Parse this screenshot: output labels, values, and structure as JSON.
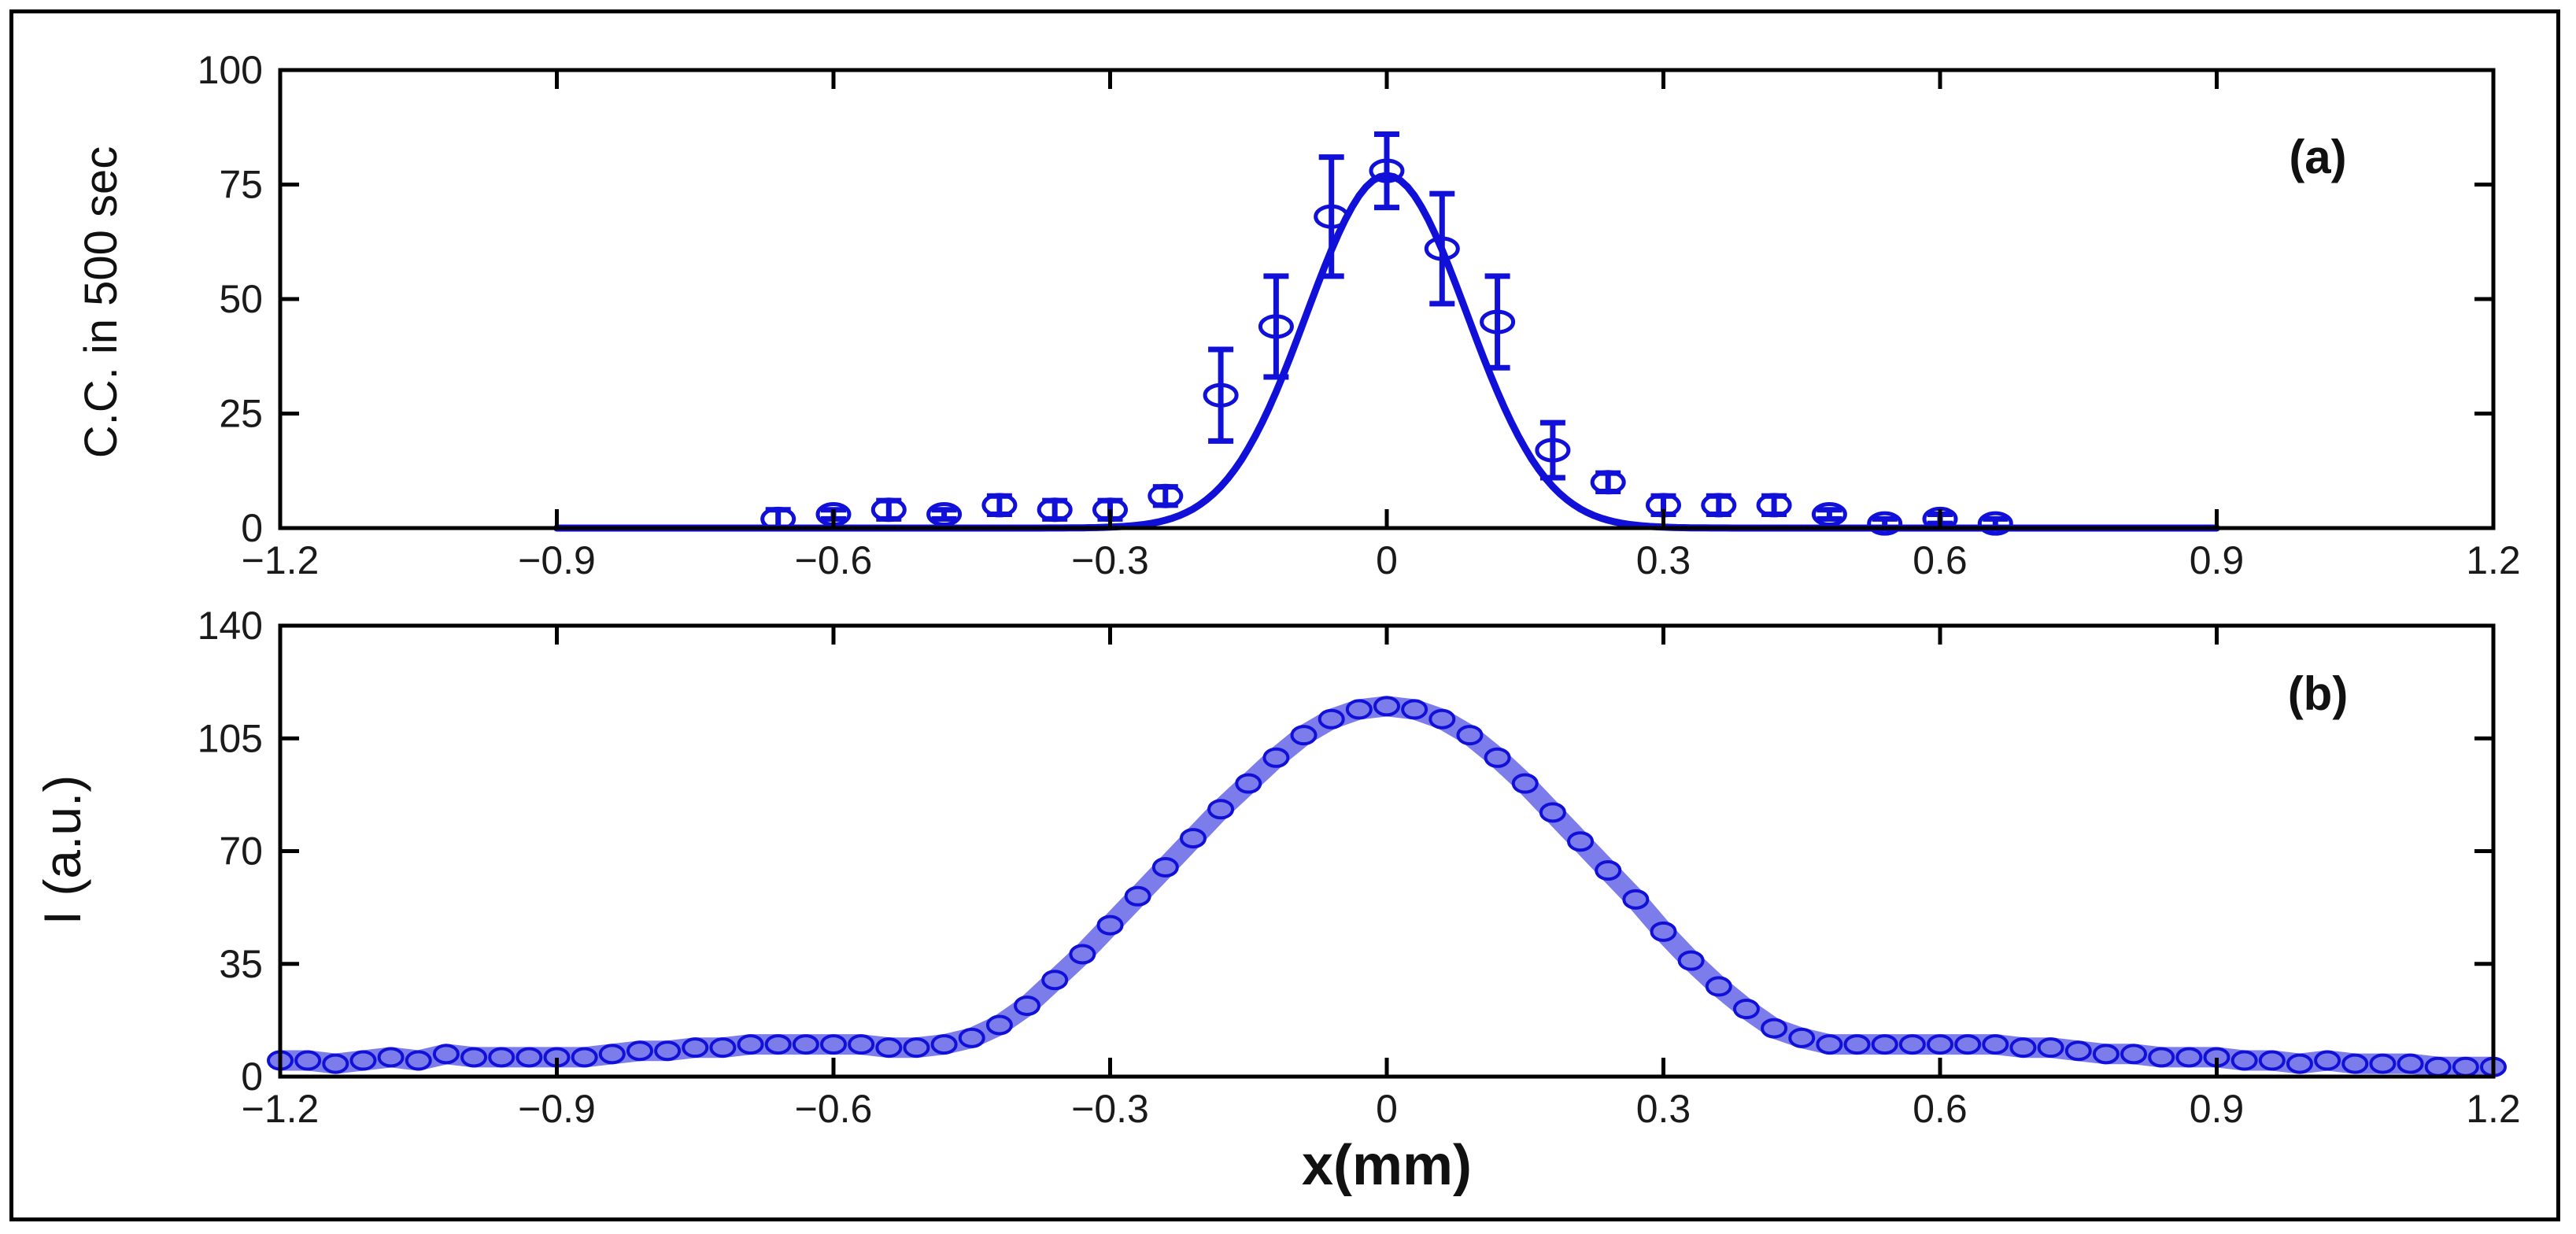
{
  "chart_data": [
    {
      "panel": "(a)",
      "type": "scatter",
      "ylabel": "C.C. in 500 sec",
      "xlim": [
        -1.2,
        1.2
      ],
      "ylim": [
        0,
        100
      ],
      "xticks": [
        "−1.2",
        "−0.9",
        "−0.6",
        "−0.3",
        "0",
        "0.3",
        "0.6",
        "0.9",
        "1.2"
      ],
      "xtick_values": [
        -1.2,
        -0.9,
        -0.6,
        -0.3,
        0,
        0.3,
        0.6,
        0.9,
        1.2
      ],
      "yticks": [
        "0",
        "25",
        "50",
        "75",
        "100"
      ],
      "ytick_values": [
        0,
        25,
        50,
        75,
        100
      ],
      "color": "#1010d8",
      "fit": {
        "form": "gaussian",
        "amplitude": 77,
        "center": 0,
        "sigma": 0.087,
        "x_range": [
          -0.9,
          0.9
        ]
      },
      "points": [
        {
          "x": -0.66,
          "y": 2,
          "err": 2
        },
        {
          "x": -0.6,
          "y": 3,
          "err": 1
        },
        {
          "x": -0.54,
          "y": 4,
          "err": 2
        },
        {
          "x": -0.48,
          "y": 3,
          "err": 1
        },
        {
          "x": -0.42,
          "y": 5,
          "err": 2
        },
        {
          "x": -0.36,
          "y": 4,
          "err": 2
        },
        {
          "x": -0.3,
          "y": 4,
          "err": 2
        },
        {
          "x": -0.24,
          "y": 7,
          "err": 2
        },
        {
          "x": -0.18,
          "y": 29,
          "err": 10
        },
        {
          "x": -0.12,
          "y": 44,
          "err": 11
        },
        {
          "x": -0.06,
          "y": 68,
          "err": 13
        },
        {
          "x": 0,
          "y": 78,
          "err": 8
        },
        {
          "x": 0.06,
          "y": 61,
          "err": 12
        },
        {
          "x": 0.12,
          "y": 45,
          "err": 10
        },
        {
          "x": 0.18,
          "y": 17,
          "err": 6
        },
        {
          "x": 0.24,
          "y": 10,
          "err": 2
        },
        {
          "x": 0.3,
          "y": 5,
          "err": 2
        },
        {
          "x": 0.36,
          "y": 5,
          "err": 2
        },
        {
          "x": 0.42,
          "y": 5,
          "err": 2
        },
        {
          "x": 0.48,
          "y": 3,
          "err": 1
        },
        {
          "x": 0.54,
          "y": 1,
          "err": 1
        },
        {
          "x": 0.6,
          "y": 2,
          "err": 1
        },
        {
          "x": 0.66,
          "y": 1,
          "err": 1
        }
      ]
    },
    {
      "panel": "(b)",
      "type": "scatter",
      "ylabel": "I (a.u.)",
      "xlabel": "x(mm)",
      "xlim": [
        -1.2,
        1.2
      ],
      "ylim": [
        0,
        140
      ],
      "xticks": [
        "−1.2",
        "−0.9",
        "−0.6",
        "−0.3",
        "0",
        "0.3",
        "0.6",
        "0.9",
        "1.2"
      ],
      "xtick_values": [
        -1.2,
        -0.9,
        -0.6,
        -0.3,
        0,
        0.3,
        0.6,
        0.9,
        1.2
      ],
      "yticks": [
        "0",
        "35",
        "70",
        "105",
        "140"
      ],
      "ytick_values": [
        0,
        35,
        70,
        105,
        140
      ],
      "color": "#1010d8",
      "points": [
        {
          "x": -1.2,
          "y": 5
        },
        {
          "x": -1.17,
          "y": 5
        },
        {
          "x": -1.14,
          "y": 4
        },
        {
          "x": -1.11,
          "y": 5
        },
        {
          "x": -1.08,
          "y": 6
        },
        {
          "x": -1.05,
          "y": 5
        },
        {
          "x": -1.02,
          "y": 7
        },
        {
          "x": -0.99,
          "y": 6
        },
        {
          "x": -0.96,
          "y": 6
        },
        {
          "x": -0.93,
          "y": 6
        },
        {
          "x": -0.9,
          "y": 6
        },
        {
          "x": -0.87,
          "y": 6
        },
        {
          "x": -0.84,
          "y": 7
        },
        {
          "x": -0.81,
          "y": 8
        },
        {
          "x": -0.78,
          "y": 8
        },
        {
          "x": -0.75,
          "y": 9
        },
        {
          "x": -0.72,
          "y": 9
        },
        {
          "x": -0.69,
          "y": 10
        },
        {
          "x": -0.66,
          "y": 10
        },
        {
          "x": -0.63,
          "y": 10
        },
        {
          "x": -0.6,
          "y": 10
        },
        {
          "x": -0.57,
          "y": 10
        },
        {
          "x": -0.54,
          "y": 9
        },
        {
          "x": -0.51,
          "y": 9
        },
        {
          "x": -0.48,
          "y": 10
        },
        {
          "x": -0.45,
          "y": 12
        },
        {
          "x": -0.42,
          "y": 16
        },
        {
          "x": -0.39,
          "y": 22
        },
        {
          "x": -0.36,
          "y": 30
        },
        {
          "x": -0.33,
          "y": 38
        },
        {
          "x": -0.3,
          "y": 47
        },
        {
          "x": -0.27,
          "y": 56
        },
        {
          "x": -0.24,
          "y": 65
        },
        {
          "x": -0.21,
          "y": 74
        },
        {
          "x": -0.18,
          "y": 83
        },
        {
          "x": -0.15,
          "y": 91
        },
        {
          "x": -0.12,
          "y": 99
        },
        {
          "x": -0.09,
          "y": 106
        },
        {
          "x": -0.06,
          "y": 111
        },
        {
          "x": -0.03,
          "y": 114
        },
        {
          "x": 0,
          "y": 115
        },
        {
          "x": 0.03,
          "y": 114
        },
        {
          "x": 0.06,
          "y": 111
        },
        {
          "x": 0.09,
          "y": 106
        },
        {
          "x": 0.12,
          "y": 99
        },
        {
          "x": 0.15,
          "y": 91
        },
        {
          "x": 0.18,
          "y": 82
        },
        {
          "x": 0.21,
          "y": 73
        },
        {
          "x": 0.24,
          "y": 64
        },
        {
          "x": 0.27,
          "y": 55
        },
        {
          "x": 0.3,
          "y": 45
        },
        {
          "x": 0.33,
          "y": 36
        },
        {
          "x": 0.36,
          "y": 28
        },
        {
          "x": 0.39,
          "y": 21
        },
        {
          "x": 0.42,
          "y": 15
        },
        {
          "x": 0.45,
          "y": 12
        },
        {
          "x": 0.48,
          "y": 10
        },
        {
          "x": 0.51,
          "y": 10
        },
        {
          "x": 0.54,
          "y": 10
        },
        {
          "x": 0.57,
          "y": 10
        },
        {
          "x": 0.6,
          "y": 10
        },
        {
          "x": 0.63,
          "y": 10
        },
        {
          "x": 0.66,
          "y": 10
        },
        {
          "x": 0.69,
          "y": 9
        },
        {
          "x": 0.72,
          "y": 9
        },
        {
          "x": 0.75,
          "y": 8
        },
        {
          "x": 0.78,
          "y": 7
        },
        {
          "x": 0.81,
          "y": 7
        },
        {
          "x": 0.84,
          "y": 6
        },
        {
          "x": 0.87,
          "y": 6
        },
        {
          "x": 0.9,
          "y": 6
        },
        {
          "x": 0.93,
          "y": 5
        },
        {
          "x": 0.96,
          "y": 5
        },
        {
          "x": 0.99,
          "y": 4
        },
        {
          "x": 1.02,
          "y": 5
        },
        {
          "x": 1.05,
          "y": 4
        },
        {
          "x": 1.08,
          "y": 4
        },
        {
          "x": 1.11,
          "y": 4
        },
        {
          "x": 1.14,
          "y": 3
        },
        {
          "x": 1.17,
          "y": 3
        },
        {
          "x": 1.2,
          "y": 3
        }
      ]
    }
  ]
}
